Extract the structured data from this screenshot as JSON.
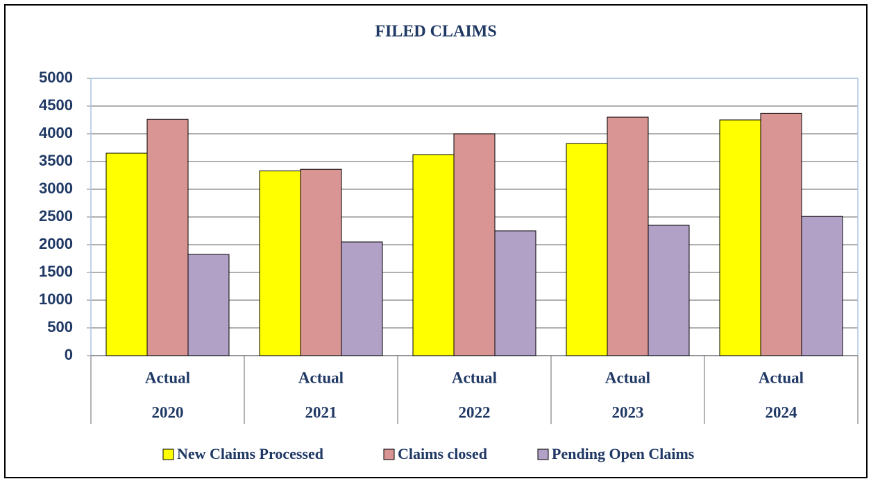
{
  "chart_data": {
    "type": "bar",
    "title": "FILED CLAIMS",
    "categories": [
      [
        "Actual",
        "2020"
      ],
      [
        "Actual",
        "2021"
      ],
      [
        "Actual",
        "2022"
      ],
      [
        "Actual",
        "2023"
      ],
      [
        "Actual",
        "2024"
      ]
    ],
    "series": [
      {
        "name": "New Claims Processed",
        "color": "#ffff00",
        "values": [
          3650,
          3330,
          3625,
          3825,
          4250
        ]
      },
      {
        "name": "Claims closed",
        "color": "#d99594",
        "values": [
          4260,
          3360,
          4000,
          4300,
          4370
        ]
      },
      {
        "name": "Pending Open Claims",
        "color": "#b2a1c7",
        "values": [
          1825,
          2050,
          2250,
          2350,
          2510
        ]
      }
    ],
    "ylim": [
      0,
      5000
    ],
    "yticks": [
      0,
      500,
      1000,
      1500,
      2000,
      2500,
      3000,
      3500,
      4000,
      4500,
      5000
    ],
    "grid": true,
    "legend": "bottom"
  }
}
